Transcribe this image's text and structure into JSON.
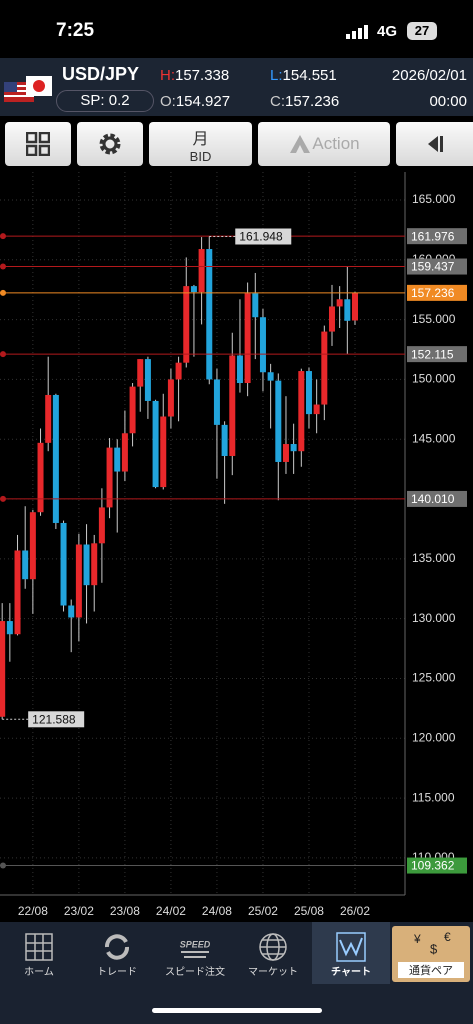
{
  "status": {
    "time": "7:25",
    "network": "4G",
    "battery": "27"
  },
  "header": {
    "pair": "USD/JPY",
    "spread": "SP: 0.2",
    "high_label": "H:",
    "high": "157.338",
    "low_label": "L:",
    "low": "154.551",
    "open_label": "O:",
    "open": "154.927",
    "close_label": "C:",
    "close": "157.236",
    "date": "2026/02/01",
    "time": "00:00"
  },
  "toolbar": {
    "period": "月",
    "side": "BID",
    "action": "Action"
  },
  "nav": [
    "ホーム",
    "トレード",
    "スピード注文",
    "マーケット",
    "チャート",
    "通貨ペア"
  ],
  "chart_data": {
    "type": "candlestick",
    "categories": [
      null,
      null,
      null,
      null,
      "22/08",
      null,
      null,
      null,
      null,
      null,
      "23/02",
      null,
      null,
      null,
      null,
      null,
      "23/08",
      null,
      null,
      null,
      null,
      null,
      "24/02",
      null,
      null,
      null,
      null,
      null,
      "24/08",
      null,
      null,
      null,
      null,
      null,
      "25/02",
      null,
      null,
      null,
      null,
      null,
      "25/08",
      null,
      null,
      null,
      null,
      null,
      "26/02"
    ],
    "open": [
      121.8,
      129.8,
      128.7,
      135.7,
      133.3,
      138.9,
      144.7,
      148.7,
      138.0,
      131.1,
      130.1,
      136.2,
      132.8,
      136.3,
      139.3,
      144.3,
      142.3,
      145.5,
      149.4,
      151.7,
      148.2,
      141.0,
      146.9,
      150.0,
      151.4,
      157.8,
      157.3,
      160.9,
      150.0,
      146.2,
      143.6,
      152.0,
      149.7,
      157.2,
      155.2,
      150.6,
      149.9,
      143.1,
      144.6,
      144.0,
      150.7,
      147.1,
      147.9,
      154.0,
      156.1,
      156.7,
      154.927
    ],
    "high": [
      131.3,
      131.3,
      137.0,
      139.4,
      139.1,
      145.9,
      151.9,
      148.8,
      138.2,
      131.6,
      137.1,
      137.9,
      137.0,
      140.9,
      145.1,
      145.0,
      147.4,
      149.7,
      151.7,
      151.9,
      148.3,
      148.8,
      150.9,
      151.9,
      160.2,
      157.9,
      161.9,
      161.948,
      150.9,
      146.5,
      153.9,
      156.7,
      158.1,
      158.9,
      155.9,
      151.3,
      150.5,
      148.6,
      146.3,
      150.9,
      151.0,
      150.0,
      154.5,
      157.9,
      157.8,
      159.437,
      157.338
    ],
    "low": [
      121.588,
      126.4,
      128.6,
      132.5,
      130.4,
      138.6,
      144.0,
      137.5,
      130.6,
      127.2,
      128.1,
      129.6,
      130.6,
      133.0,
      138.4,
      137.2,
      141.5,
      144.4,
      147.3,
      146.7,
      140.9,
      140.8,
      145.9,
      146.5,
      151.0,
      151.9,
      154.6,
      149.6,
      141.7,
      139.6,
      142.0,
      148.9,
      148.6,
      151.7,
      149.0,
      145.9,
      139.9,
      142.1,
      142.1,
      142.7,
      145.9,
      145.5,
      146.6,
      152.8,
      154.3,
      152.1,
      154.551
    ],
    "close": [
      129.8,
      128.7,
      135.7,
      133.3,
      138.9,
      144.7,
      148.7,
      138.0,
      131.1,
      130.1,
      136.2,
      132.8,
      136.3,
      139.3,
      144.3,
      142.3,
      145.5,
      149.4,
      151.7,
      148.2,
      141.0,
      146.9,
      150.0,
      151.4,
      157.8,
      157.3,
      160.9,
      150.0,
      146.2,
      143.6,
      152.0,
      149.7,
      157.2,
      155.2,
      150.6,
      149.9,
      143.1,
      144.6,
      144.0,
      150.7,
      147.1,
      147.9,
      154.0,
      156.1,
      156.7,
      154.9,
      157.236
    ],
    "up_color": "#e8282b",
    "down_color": "#22a4dc",
    "ylim": [
      106.9,
      167.34
    ],
    "yticks": [
      {
        "value": 110,
        "label": "110.000"
      },
      {
        "value": 115,
        "label": "115.000"
      },
      {
        "value": 120,
        "label": "120.000"
      },
      {
        "value": 125,
        "label": "125.000"
      },
      {
        "value": 130,
        "label": "130.000"
      },
      {
        "value": 135,
        "label": "135.000"
      },
      {
        "value": 140,
        "label": "140.000"
      },
      {
        "value": 145,
        "label": "145.000"
      },
      {
        "value": 150,
        "label": "150.000"
      },
      {
        "value": 155,
        "label": "155.000"
      },
      {
        "value": 160,
        "label": "160.000"
      },
      {
        "value": 165,
        "label": "165.000"
      }
    ],
    "grid": true,
    "price_lines": [
      {
        "value": 161.976,
        "color": "#b3191c",
        "label_color": "#6f6f6f"
      },
      {
        "value": 159.437,
        "color": "#b3191c",
        "label_color": "#6f6f6f"
      },
      {
        "value": 157.236,
        "color": "#f08a24",
        "label_color": "#f08a24"
      },
      {
        "value": 152.115,
        "color": "#b3191c",
        "label_color": "#6f6f6f"
      },
      {
        "value": {
          "value": 140.01,
          "label": "140.010"
        },
        "color": "#b3191c",
        "label_color": "#6f6f6f"
      },
      {
        "value": 109.362,
        "color": "#555",
        "label_color": "#3c9a3c"
      }
    ],
    "annotations": [
      {
        "index": 27,
        "value": 161.948
      },
      {
        "index": 0,
        "value": 121.588
      }
    ]
  }
}
